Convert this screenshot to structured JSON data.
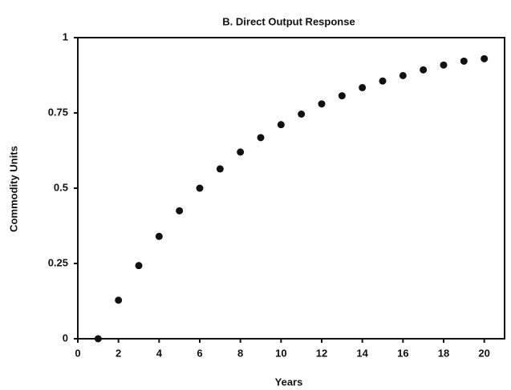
{
  "chart_data": {
    "type": "scatter",
    "title": "B. Direct Output Response",
    "x_label": "Years",
    "y_label": "Commodity Units",
    "series": [
      {
        "name": "Direct output",
        "color": "#111111",
        "x": [
          1,
          2,
          3,
          4,
          5,
          6,
          7,
          8,
          9,
          10,
          11,
          12,
          13,
          14,
          15,
          16,
          17,
          18,
          19,
          20
        ],
        "values": [
          0,
          0.128,
          0.243,
          0.34,
          0.425,
          0.5,
          0.564,
          0.62,
          0.668,
          0.711,
          0.746,
          0.78,
          0.807,
          0.834,
          0.856,
          0.874,
          0.893,
          0.909,
          0.922,
          0.93
        ]
      }
    ],
    "xlim": [
      0,
      21
    ],
    "xticks": [
      0,
      2,
      4,
      6,
      8,
      10,
      12,
      14,
      16,
      18,
      20
    ],
    "ylim": [
      0,
      1
    ],
    "yticks": [
      0,
      0.25,
      0.5,
      0.75,
      1
    ]
  }
}
